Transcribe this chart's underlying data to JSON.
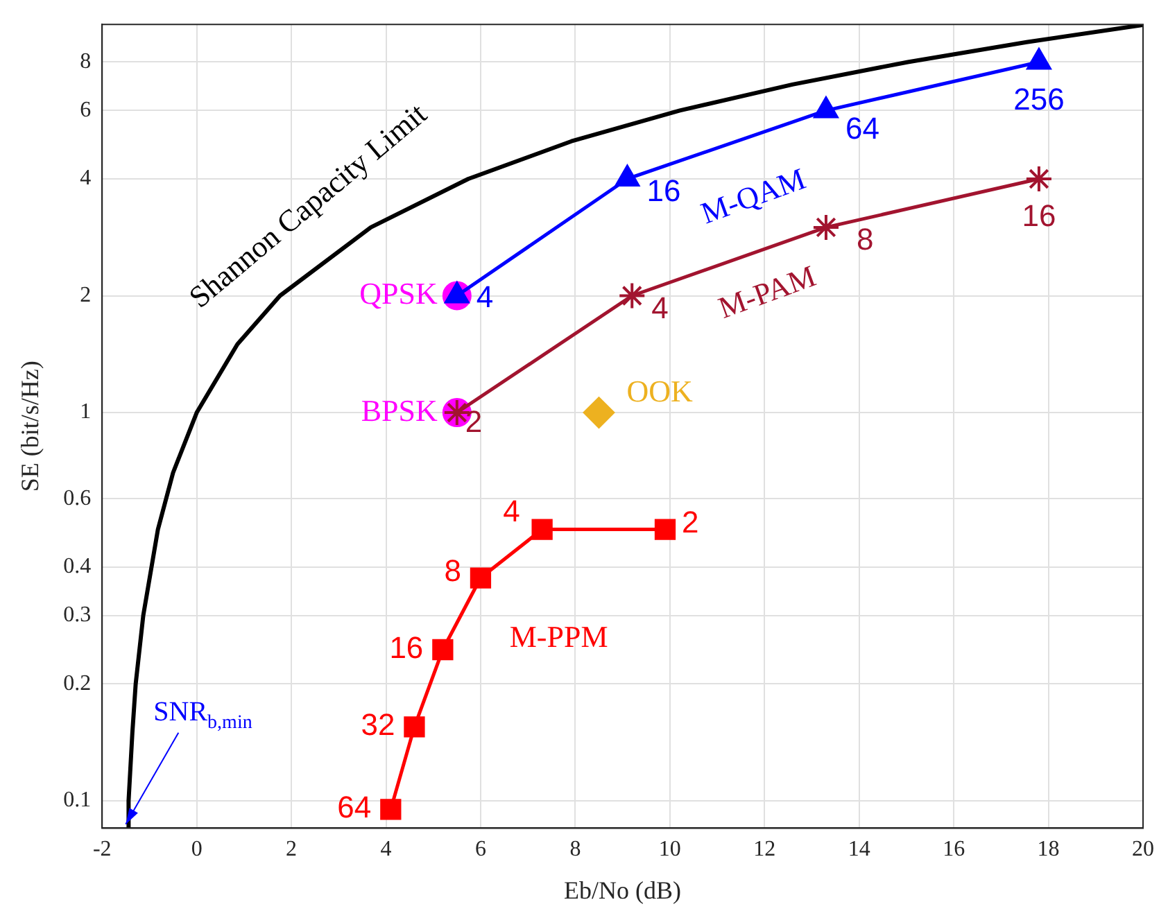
{
  "chart_data": {
    "type": "line",
    "xlabel": "Eb/No (dB)",
    "ylabel": "SE (bit/s/Hz)",
    "log": "y",
    "grid": true,
    "legend": false,
    "xlim": [
      -2,
      20
    ],
    "xticks": [
      -2,
      0,
      2,
      4,
      6,
      8,
      10,
      12,
      14,
      16,
      18,
      20
    ],
    "ylim": [
      0.085,
      10
    ],
    "yticks": [
      0.1,
      0.2,
      0.3,
      0.4,
      0.6,
      1,
      2,
      4,
      6,
      8
    ],
    "series": [
      {
        "name": "Shannon Capacity Limit",
        "color": "#000000",
        "marker": "none",
        "x": [
          -1.46,
          -1.44,
          -1.36,
          -1.29,
          -1.13,
          -0.82,
          -0.5,
          0,
          0.86,
          1.76,
          3.68,
          5.74,
          7.92,
          10.21,
          12.59,
          15.03,
          17.54,
          20
        ],
        "values": [
          0.085,
          0.1,
          0.15,
          0.2,
          0.3,
          0.5,
          0.7,
          1,
          1.5,
          2,
          3,
          4,
          5,
          6,
          7,
          8,
          9,
          9.97
        ]
      },
      {
        "name": "M-QAM",
        "color": "#0000ff",
        "marker": "triangle",
        "x": [
          5.5,
          9.1,
          13.3,
          17.8
        ],
        "values": [
          2,
          4,
          6,
          8
        ]
      },
      {
        "name": "M-PAM",
        "color": "#a2142f",
        "marker": "cross",
        "x": [
          5.5,
          9.2,
          13.3,
          17.8
        ],
        "values": [
          1,
          2,
          3,
          4
        ]
      },
      {
        "name": "M-PPM",
        "color": "#ff0000",
        "marker": "square",
        "x": [
          4.1,
          4.6,
          5.2,
          6.0,
          7.3,
          9.9
        ],
        "values": [
          0.095,
          0.155,
          0.245,
          0.375,
          0.5,
          0.5
        ]
      },
      {
        "name": "QPSK",
        "type": "scatter",
        "color": "#ff00ff",
        "marker": "circle",
        "x": [
          5.5
        ],
        "values": [
          2
        ]
      },
      {
        "name": "BPSK",
        "type": "scatter",
        "color": "#ff00ff",
        "marker": "circle",
        "x": [
          5.5
        ],
        "values": [
          1
        ]
      },
      {
        "name": "OOK",
        "type": "scatter",
        "color": "#edb120",
        "marker": "diamond",
        "x": [
          8.5
        ],
        "values": [
          1
        ]
      }
    ],
    "annotations": [
      {
        "text": "4",
        "x": 5.5,
        "y": 2
      },
      {
        "text": "16",
        "x": 9.1,
        "y": 4
      },
      {
        "text": "64",
        "x": 13.3,
        "y": 6
      },
      {
        "text": "256",
        "x": 17.8,
        "y": 8
      },
      {
        "text": "2",
        "x": 5.5,
        "y": 1
      },
      {
        "text": "4",
        "x": 9.2,
        "y": 2
      },
      {
        "text": "8",
        "x": 13.3,
        "y": 3
      },
      {
        "text": "16",
        "x": 17.8,
        "y": 4
      },
      {
        "text": "64",
        "x": 4.1,
        "y": 0.095
      },
      {
        "text": "32",
        "x": 4.6,
        "y": 0.155
      },
      {
        "text": "16",
        "x": 5.2,
        "y": 0.245
      },
      {
        "text": "8",
        "x": 6.0,
        "y": 0.375
      },
      {
        "text": "4",
        "x": 7.3,
        "y": 0.5
      },
      {
        "text": "2",
        "x": 9.9,
        "y": 0.5
      },
      {
        "text": "SNR$_{b,min}$",
        "x": -1.5,
        "y": 0.087
      }
    ]
  }
}
